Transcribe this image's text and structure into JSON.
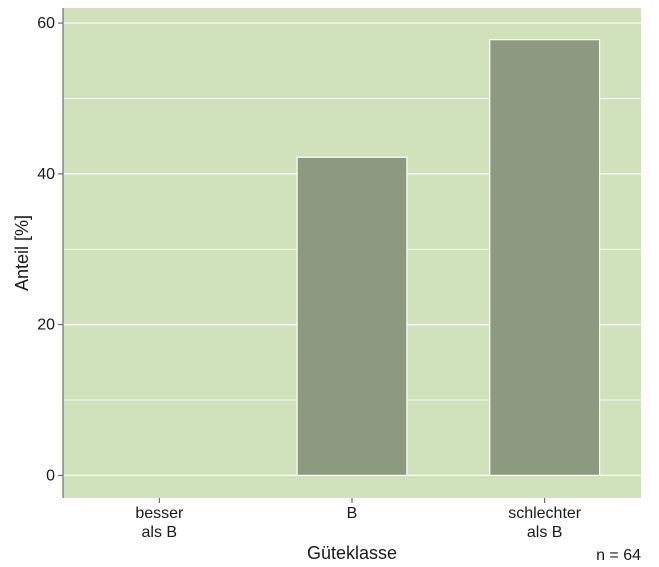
{
  "chart_data": {
    "type": "bar",
    "categories": [
      [
        "besser",
        "als B"
      ],
      [
        "B"
      ],
      [
        "schlechter",
        "als B"
      ]
    ],
    "values": [
      0,
      42.2,
      57.8
    ],
    "xlabel": "Güteklasse",
    "ylabel": "Anteil [%]",
    "ylim": [
      -3,
      62
    ],
    "yticks": [
      0,
      20,
      40,
      60
    ],
    "grid": true,
    "note": "n = 64",
    "colors": {
      "panel": "#d0e2bc",
      "bar": "#8c9a80",
      "bar_edge": "#ffffff",
      "grid": "#ffffff",
      "axis": "#555555"
    }
  }
}
